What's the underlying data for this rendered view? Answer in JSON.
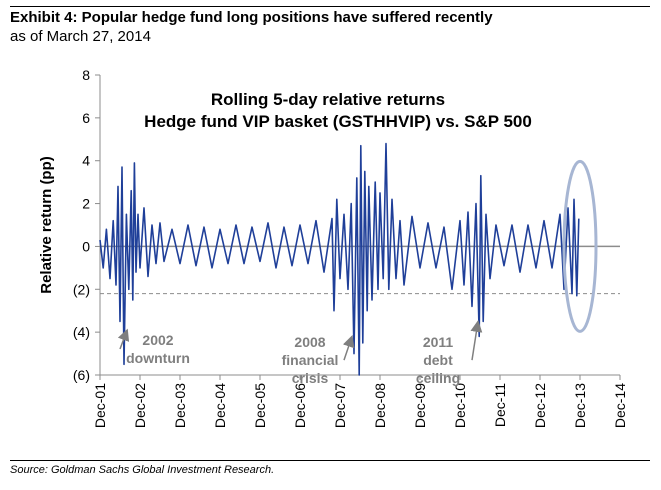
{
  "header": {
    "title": "Exhibit 4: Popular hedge fund long positions have suffered recently",
    "subtitle": "as of March 27, 2014"
  },
  "footer": {
    "source": "Source: Goldman Sachs Global Investment Research."
  },
  "chart_data": {
    "type": "line",
    "title_line1": "Rolling 5-day relative returns",
    "title_line2": "Hedge fund VIP basket (GSTHHVIP) vs. S&P 500",
    "ylabel": "Relative return (pp)",
    "xlabel": "",
    "ylim": [
      -6,
      8
    ],
    "xlim": [
      0,
      13
    ],
    "yticks": [
      {
        "value": 8,
        "label": "8"
      },
      {
        "value": 6,
        "label": "6"
      },
      {
        "value": 4,
        "label": "4"
      },
      {
        "value": 2,
        "label": "2"
      },
      {
        "value": 0,
        "label": "0"
      },
      {
        "value": -2,
        "label": "(2)"
      },
      {
        "value": -4,
        "label": "(4)"
      },
      {
        "value": -6,
        "label": "(6)"
      }
    ],
    "xticks": [
      "Dec-01",
      "Dec-02",
      "Dec-03",
      "Dec-04",
      "Dec-05",
      "Dec-06",
      "Dec-07",
      "Dec-08",
      "Dec-09",
      "Dec-10",
      "Dec-11",
      "Dec-12",
      "Dec-13",
      "Dec-14"
    ],
    "reference_line": {
      "value": -2.2,
      "style": "dashed"
    },
    "series": [
      {
        "name": "Rolling 5-day relative return",
        "color": "#1f3f99",
        "points": [
          [
            0.0,
            0.3
          ],
          [
            0.08,
            -1.0
          ],
          [
            0.16,
            0.8
          ],
          [
            0.25,
            -1.5
          ],
          [
            0.33,
            1.2
          ],
          [
            0.4,
            -1.8
          ],
          [
            0.45,
            2.8
          ],
          [
            0.5,
            -3.5
          ],
          [
            0.55,
            3.7
          ],
          [
            0.6,
            -5.5
          ],
          [
            0.66,
            1.5
          ],
          [
            0.72,
            -2.0
          ],
          [
            0.78,
            2.6
          ],
          [
            0.82,
            -2.5
          ],
          [
            0.86,
            3.9
          ],
          [
            0.9,
            -1.2
          ],
          [
            0.95,
            1.5
          ],
          [
            1.0,
            -1.0
          ],
          [
            1.1,
            1.8
          ],
          [
            1.2,
            -1.4
          ],
          [
            1.3,
            1.0
          ],
          [
            1.4,
            -0.8
          ],
          [
            1.5,
            1.1
          ],
          [
            1.6,
            -0.7
          ],
          [
            1.8,
            0.8
          ],
          [
            2.0,
            -0.8
          ],
          [
            2.2,
            1.0
          ],
          [
            2.4,
            -0.9
          ],
          [
            2.6,
            0.9
          ],
          [
            2.8,
            -1.0
          ],
          [
            3.0,
            0.8
          ],
          [
            3.2,
            -0.8
          ],
          [
            3.4,
            1.0
          ],
          [
            3.6,
            -0.8
          ],
          [
            3.8,
            0.9
          ],
          [
            4.0,
            -0.7
          ],
          [
            4.2,
            1.1
          ],
          [
            4.4,
            -1.0
          ],
          [
            4.6,
            0.9
          ],
          [
            4.8,
            -0.9
          ],
          [
            5.0,
            1.0
          ],
          [
            5.2,
            -0.8
          ],
          [
            5.4,
            1.2
          ],
          [
            5.6,
            -1.2
          ],
          [
            5.8,
            1.3
          ],
          [
            5.85,
            -3.0
          ],
          [
            5.92,
            2.2
          ],
          [
            6.0,
            -1.5
          ],
          [
            6.1,
            1.5
          ],
          [
            6.2,
            -2.0
          ],
          [
            6.28,
            2.0
          ],
          [
            6.35,
            -5.0
          ],
          [
            6.42,
            3.2
          ],
          [
            6.48,
            -6.0
          ],
          [
            6.52,
            4.7
          ],
          [
            6.57,
            -4.5
          ],
          [
            6.62,
            3.5
          ],
          [
            6.68,
            -3.0
          ],
          [
            6.72,
            2.8
          ],
          [
            6.8,
            -2.5
          ],
          [
            6.88,
            3.0
          ],
          [
            6.95,
            -2.0
          ],
          [
            7.0,
            2.5
          ],
          [
            7.08,
            -1.5
          ],
          [
            7.15,
            4.8
          ],
          [
            7.22,
            -2.0
          ],
          [
            7.3,
            2.2
          ],
          [
            7.4,
            -1.5
          ],
          [
            7.5,
            1.2
          ],
          [
            7.6,
            -1.8
          ],
          [
            7.8,
            1.4
          ],
          [
            8.0,
            -1.0
          ],
          [
            8.2,
            1.1
          ],
          [
            8.4,
            -1.0
          ],
          [
            8.6,
            0.9
          ],
          [
            8.8,
            -2.0
          ],
          [
            9.0,
            1.2
          ],
          [
            9.1,
            -1.8
          ],
          [
            9.2,
            1.6
          ],
          [
            9.3,
            -2.8
          ],
          [
            9.4,
            2.0
          ],
          [
            9.48,
            -4.2
          ],
          [
            9.52,
            3.3
          ],
          [
            9.58,
            -3.5
          ],
          [
            9.65,
            1.5
          ],
          [
            9.75,
            -1.5
          ],
          [
            9.9,
            1.0
          ],
          [
            10.1,
            -0.9
          ],
          [
            10.3,
            1.0
          ],
          [
            10.5,
            -1.2
          ],
          [
            10.7,
            1.0
          ],
          [
            10.9,
            -1.0
          ],
          [
            11.1,
            1.2
          ],
          [
            11.3,
            -1.0
          ],
          [
            11.5,
            1.5
          ],
          [
            11.6,
            -2.0
          ],
          [
            11.7,
            1.8
          ],
          [
            11.8,
            -2.2
          ],
          [
            11.85,
            2.2
          ],
          [
            11.92,
            -2.3
          ],
          [
            11.97,
            1.3
          ]
        ]
      }
    ],
    "annotations": [
      {
        "text_lines": [
          "2002",
          "downturn"
        ],
        "at": [
          1.45,
          -4.6
        ],
        "arrow_to": [
          0.68,
          -3.9
        ]
      },
      {
        "text_lines": [
          "2008",
          "financial",
          "crisis"
        ],
        "at": [
          5.25,
          -4.7
        ],
        "arrow_to": [
          6.3,
          -4.2
        ]
      },
      {
        "text_lines": [
          "2011",
          "debt",
          "ceiling"
        ],
        "at": [
          8.45,
          -4.7
        ],
        "arrow_to": [
          9.45,
          -3.5
        ]
      }
    ],
    "highlight": {
      "shape": "ellipse",
      "center": [
        12.0,
        0.0
      ],
      "color": "#a7b6d3"
    }
  }
}
